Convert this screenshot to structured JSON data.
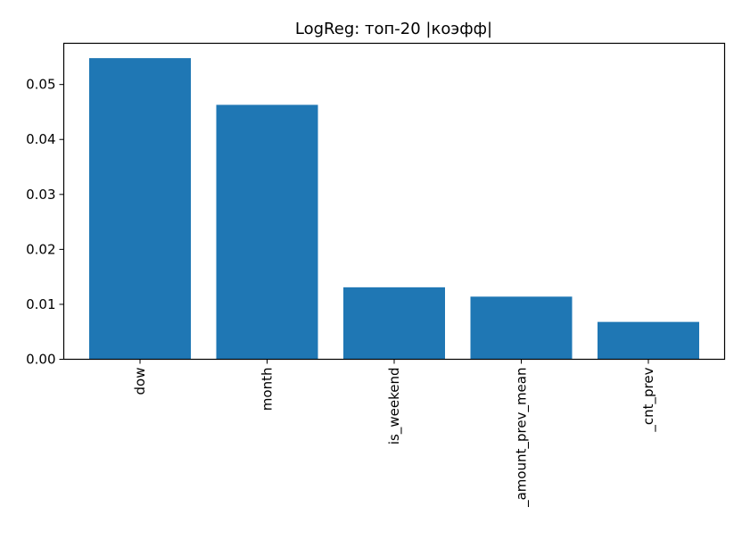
{
  "chart_data": {
    "type": "bar",
    "title": "LogReg: топ-20 |коэфф|",
    "xlabel": "",
    "ylabel": "",
    "categories": [
      "dow",
      "month",
      "is_weekend",
      "_amount_prev_mean",
      "_cnt_prev"
    ],
    "values": [
      0.0548,
      0.0463,
      0.0131,
      0.0114,
      0.0068
    ],
    "ylim": [
      0,
      0.0575
    ],
    "yticks": [
      0.0,
      0.01,
      0.02,
      0.03,
      0.04,
      0.05
    ],
    "ytick_labels": [
      "0.00",
      "0.01",
      "0.02",
      "0.03",
      "0.04",
      "0.05"
    ],
    "grid": false,
    "legend": "none",
    "bar_color": "#1f77b4",
    "x_tick_rotation": "vertical"
  }
}
